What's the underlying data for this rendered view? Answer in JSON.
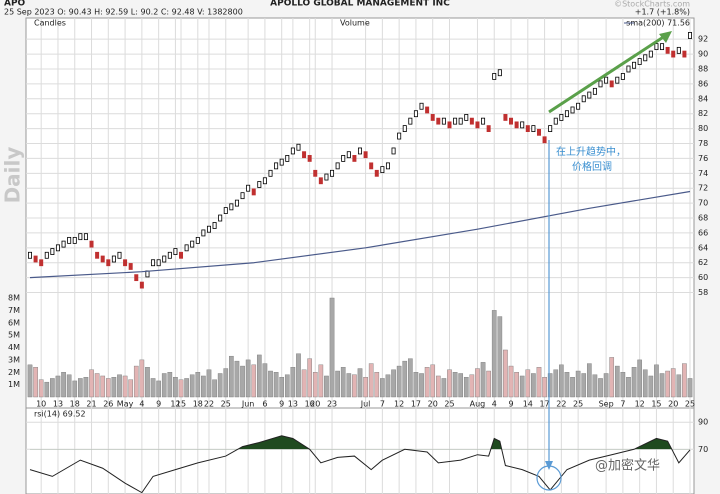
{
  "header": {
    "symbol": "APO",
    "name": "APOLLO GLOBAL MANAGEMENT INC",
    "quote": "25 Sep 2023   O: 90.43   H: 92.59   L: 90.2   C: 92.48   V: 1382800",
    "change": "+1.7 (+1.8%)",
    "source": "©StockCharts.com",
    "period": "Daily"
  },
  "annotation": [
    "在上升趋势中，",
    "价格回调"
  ],
  "watermark": "@加密文华",
  "chart_data": [
    {
      "type": "price",
      "title": "Candles",
      "categories": [
        null,
        null,
        "10",
        null,
        null,
        "13",
        null,
        null,
        "18",
        null,
        null,
        "21",
        null,
        null,
        "26",
        null,
        null,
        "May",
        null,
        null,
        "4",
        null,
        null,
        "9",
        null,
        null,
        "12",
        "15",
        null,
        null,
        "18",
        null,
        "22",
        null,
        null,
        "25",
        null,
        null,
        null,
        "Jun",
        null,
        null,
        "6",
        null,
        null,
        "9",
        null,
        "13",
        null,
        null,
        "16",
        "20",
        null,
        null,
        "23",
        null,
        null,
        null,
        null,
        null,
        "Jul",
        null,
        null,
        "7",
        null,
        null,
        "12",
        null,
        null,
        "17",
        null,
        null,
        "20",
        null,
        null,
        "25",
        null,
        null,
        null,
        null,
        "Aug",
        null,
        null,
        "4",
        null,
        null,
        "9",
        null,
        null,
        "14",
        null,
        null,
        "17",
        null,
        null,
        "22",
        null,
        null,
        "25",
        null,
        null,
        null,
        null,
        "Sep",
        null,
        null,
        "7",
        null,
        null,
        "12",
        null,
        null,
        "15",
        null,
        null,
        "20",
        null,
        null,
        "25"
      ],
      "series": [
        {
          "name": "APO",
          "color": "#000000",
          "down_color": "#c03030",
          "values": [
            63,
            62.5,
            62,
            63,
            63.5,
            64,
            64.5,
            65,
            65,
            65.5,
            65.5,
            64.5,
            63,
            62.5,
            62,
            62.5,
            63,
            62,
            61.5,
            60,
            59,
            60.5,
            62,
            62,
            62.5,
            63,
            63.5,
            63,
            64,
            64.5,
            65,
            66,
            66.5,
            67,
            68,
            69,
            69.5,
            70,
            71,
            72,
            71.5,
            72.5,
            73,
            74,
            75,
            75.5,
            76,
            77,
            77.5,
            76.5,
            76,
            74,
            73,
            73.5,
            74,
            75,
            76,
            76.5,
            76,
            77,
            76.5,
            75,
            74,
            74.5,
            75,
            77,
            79,
            80,
            81,
            82,
            83,
            82.5,
            81.5,
            81,
            81,
            80.5,
            81,
            81,
            81.5,
            81,
            80.5,
            81,
            80,
            87,
            87.5,
            81.5,
            81,
            80.5,
            80.5,
            80,
            80,
            79.5,
            78.5,
            80,
            81,
            81.5,
            82,
            82.5,
            83,
            84,
            84.5,
            85,
            86,
            86.5,
            86,
            86.5,
            87,
            88,
            88.5,
            89,
            89.5,
            90,
            91,
            91,
            90.5,
            90,
            90.5,
            90,
            92.5
          ]
        }
      ],
      "overlay": {
        "name": "sma(200) 71.56",
        "color": "#4a5a8a",
        "x": [
          0,
          20,
          40,
          60,
          80,
          100,
          118
        ],
        "values": [
          60,
          60.8,
          62,
          64,
          66.5,
          69.3,
          71.56
        ]
      },
      "ylim": [
        57,
        93.5
      ],
      "yticks": [
        58,
        60,
        62,
        64,
        66,
        68,
        70,
        72,
        74,
        76,
        78,
        80,
        82,
        84,
        86,
        88,
        90,
        92
      ],
      "grid": true
    },
    {
      "type": "bar",
      "title": "Volume",
      "color": "#a8a8a8",
      "down_color": "#e2b4b4",
      "values": [
        2600000,
        2400000,
        1400000,
        1200000,
        1500000,
        1700000,
        2000000,
        1800000,
        1300000,
        1500000,
        1600000,
        2200000,
        1900000,
        1700000,
        1500000,
        1600000,
        1800000,
        1700000,
        1400000,
        2500000,
        3000000,
        2400000,
        1500000,
        1300000,
        1900000,
        2000000,
        1600000,
        1400000,
        1500000,
        1800000,
        2000000,
        1700000,
        2200000,
        1400000,
        1900000,
        2300000,
        3300000,
        2900000,
        2500000,
        3000000,
        2600000,
        3400000,
        2700000,
        2100000,
        2000000,
        1600000,
        1800000,
        2400000,
        3500000,
        2200000,
        3100000,
        2000000,
        2600000,
        1700000,
        8000000,
        2100000,
        2400000,
        1900000,
        1800000,
        2300000,
        1600000,
        2700000,
        2000000,
        1500000,
        1800000,
        2200000,
        2500000,
        2900000,
        3100000,
        2000000,
        1900000,
        2400000,
        2600000,
        1700000,
        1500000,
        2200000,
        2000000,
        1900000,
        1600000,
        1800000,
        2300000,
        2800000,
        2100000,
        7000000,
        6500000,
        3800000,
        2500000,
        2000000,
        1700000,
        2200000,
        1900000,
        2400000,
        1600000,
        1900000,
        2200000,
        2600000,
        2000000,
        1600000,
        2100000,
        1900000,
        2700000,
        1800000,
        1500000,
        1900000,
        3200000,
        2500000,
        2000000,
        1600000,
        2400000,
        3000000,
        2200000,
        1700000,
        2600000,
        1900000,
        2100000,
        2300000,
        1800000,
        2700000,
        1500000
      ],
      "ylim": [
        0,
        8000000
      ],
      "yticks": [
        {
          "value": 1000000,
          "label": "1M"
        },
        {
          "value": 2000000,
          "label": "2M"
        },
        {
          "value": 3000000,
          "label": "3M"
        },
        {
          "value": 4000000,
          "label": "4M"
        },
        {
          "value": 5000000,
          "label": "5M"
        },
        {
          "value": 6000000,
          "label": "6M"
        },
        {
          "value": 7000000,
          "label": "7M"
        },
        {
          "value": 8000000,
          "label": "8M"
        }
      ]
    },
    {
      "type": "line",
      "title": "rsi(14) 69.52",
      "color": "#222222",
      "fill_color": "#1f4a1f",
      "fill_above": 70,
      "x": [
        0,
        4,
        9,
        13,
        17,
        20,
        22,
        26,
        30,
        35,
        38,
        41,
        45,
        47,
        50,
        52,
        55,
        58,
        61,
        63,
        67,
        71,
        73,
        77,
        80,
        82,
        83,
        84,
        85,
        88,
        91,
        93,
        96,
        100,
        104,
        108,
        112,
        114,
        116,
        118
      ],
      "values": [
        55,
        50,
        62,
        56,
        45,
        38,
        50,
        55,
        60,
        65,
        72,
        75,
        80,
        78,
        70,
        60,
        64,
        65,
        55,
        62,
        70,
        68,
        60,
        62,
        66,
        65,
        78,
        76,
        58,
        55,
        50,
        40,
        55,
        62,
        66,
        70,
        78,
        76,
        60,
        69.52
      ],
      "ylim": [
        37,
        99
      ],
      "yticks": [
        90,
        70
      ],
      "grid": true
    }
  ]
}
